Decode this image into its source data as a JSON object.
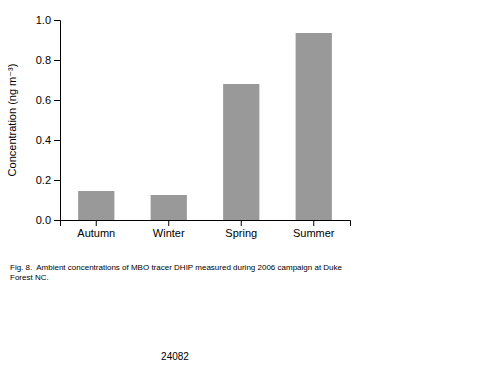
{
  "chart_data": {
    "type": "bar",
    "categories": [
      "Autumn",
      "Winter",
      "Spring",
      "Summer"
    ],
    "values": [
      0.145,
      0.125,
      0.68,
      0.935
    ],
    "color": "#999999",
    "ylabel": "Concentration (ng m⁻³)",
    "ylim": [
      0.0,
      1.0
    ],
    "yticks": [
      {
        "value": 0.0,
        "label": "0.0"
      },
      0.2,
      0.4,
      0.6,
      0.8,
      {
        "value": 1.0,
        "label": "1.0"
      }
    ],
    "grid": false,
    "annotations": [
      "Fig. 8.  Ambient concentrations of MBO tracer DHIP measured during 2006 campaign at Duke\nForest NC.",
      "24082"
    ]
  }
}
